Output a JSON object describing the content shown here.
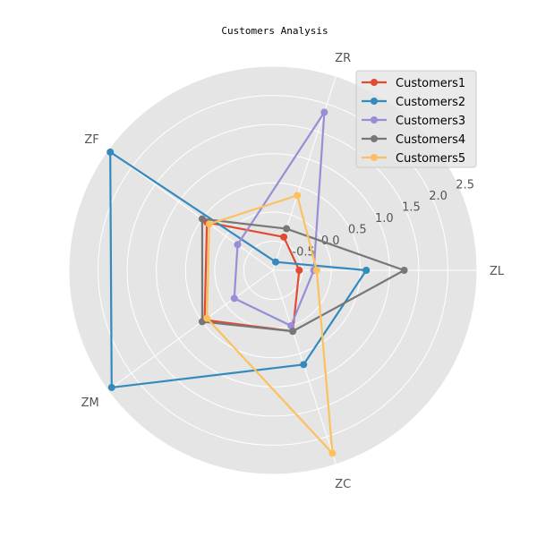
{
  "chart_data": {
    "type": "radar",
    "title": "Customers Analysis",
    "categories": [
      "ZL",
      "ZR",
      "ZF",
      "ZM",
      "ZC"
    ],
    "r_ticks": [
      -0.5,
      0.0,
      0.5,
      1.0,
      1.5,
      2.0,
      2.5
    ],
    "r_tick_labels": [
      "-0.5",
      "0.0",
      "0.5",
      "1.0",
      "1.5",
      "2.0",
      "2.5"
    ],
    "rlim": [
      -1,
      2.5
    ],
    "grid": true,
    "legend_position": "top-right",
    "series": [
      {
        "name": "Customers1",
        "color": "#E24A33",
        "values": [
          -0.55,
          -0.4,
          0.4,
          0.45,
          0.1
        ]
      },
      {
        "name": "Customers2",
        "color": "#348ABD",
        "values": [
          0.6,
          -0.85,
          2.45,
          2.42,
          0.7
        ]
      },
      {
        "name": "Customers3",
        "color": "#988ED5",
        "values": [
          -0.3,
          1.85,
          -0.25,
          -0.18,
          0.0
        ]
      },
      {
        "name": "Customers4",
        "color": "#777777",
        "values": [
          1.25,
          -0.25,
          0.5,
          0.5,
          0.1
        ]
      },
      {
        "name": "Customers5",
        "color": "#FBC15E",
        "values": [
          -0.25,
          0.35,
          0.35,
          0.4,
          2.3
        ]
      }
    ]
  }
}
